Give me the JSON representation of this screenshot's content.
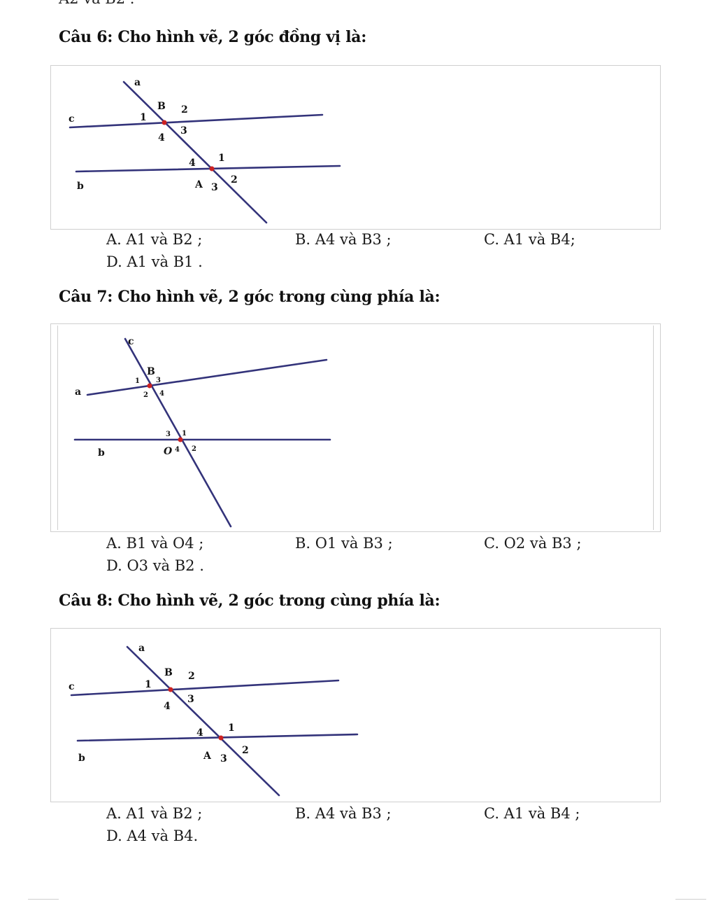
{
  "prev_fragment": "A2 và B2 .",
  "questions": [
    {
      "title": "Câu 6:  Cho hình vẽ, 2 góc đồng vị là:",
      "figure": {
        "labels": {
          "a": "a",
          "c": "c",
          "b": "b",
          "B": "B",
          "A": "A",
          "B1": "1",
          "B2": "2",
          "B3": "3",
          "B4": "4",
          "A1": "1",
          "A2": "2",
          "A3": "3",
          "A4": "4"
        }
      },
      "options": {
        "A": "A. A1 và B2 ;",
        "B": "B. A4 và B3 ;",
        "C": "C. A1 và B4;",
        "D": "D. A1 và B1 ."
      }
    },
    {
      "title": "Câu 7:  Cho hình vẽ, 2 góc trong cùng phía là:",
      "figure": {
        "labels": {
          "c": "c",
          "a": "a",
          "b": "b",
          "B": "B",
          "O": "O",
          "B1": "1",
          "B2": "2",
          "B3": "3",
          "B4": "4",
          "O1": "1",
          "O2": "2",
          "O3": "3",
          "O4": "4"
        }
      },
      "options": {
        "A": "A. B1 và O4 ;",
        "B": "B. O1 và B3 ;",
        "C": "C. O2 và B3 ;",
        "D": "D. O3 và B2 ."
      }
    },
    {
      "title": "Câu 8: Cho hình vẽ, 2 góc trong cùng phía là:",
      "figure": {
        "labels": {
          "a": "a",
          "c": "c",
          "b": "b",
          "B": "B",
          "A": "A",
          "B1": "1",
          "B2": "2",
          "B3": "3",
          "B4": "4",
          "A1": "1",
          "A2": "2",
          "A3": "3",
          "A4": "4"
        }
      },
      "options": {
        "A": "A. A1 và B2 ;",
        "B": "B. A4 và B3 ;",
        "C": "C. A1 và B4 ;",
        "D": "D. A4 và B4."
      }
    }
  ],
  "colors": {
    "line": "#33337a",
    "point": "#cc2222",
    "border": "#cfcfcf"
  }
}
